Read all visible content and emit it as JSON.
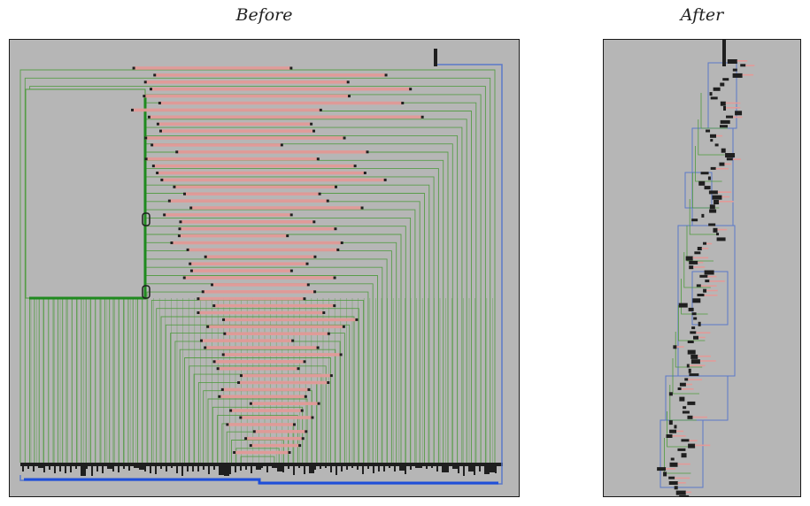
{
  "titles": {
    "before": "Before",
    "after": "After"
  },
  "colors": {
    "background": "#b6b6b6",
    "red_link": "#e39a98",
    "green_link": "#4f9a3e",
    "green_bold": "#1f8a1f",
    "blue_box": "#5a78c8",
    "blue_bold": "#1f4fd8",
    "node": "#1f1f1f"
  }
}
